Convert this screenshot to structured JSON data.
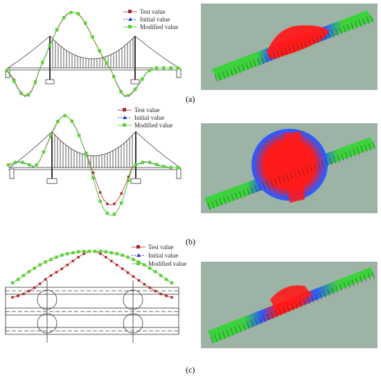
{
  "captions": {
    "a": "(a)",
    "b": "(b)",
    "c": "(c)"
  },
  "legend": {
    "test": "Test value",
    "initial": "Initial value",
    "modified": "Modified value"
  },
  "colors": {
    "test": "#c0504d",
    "test_marker": "#a52a2a",
    "initial": "#2233cc",
    "modified": "#5fd038",
    "mode_bg": "#9db3a6",
    "mode_low": "#3cd23c",
    "mode_mid": "#2a5cff",
    "mode_high": "#ff1a1a"
  },
  "chart_data": [
    {
      "type": "line",
      "panel": "a",
      "x": [
        0,
        1,
        2,
        3,
        4,
        5,
        6,
        7,
        8,
        9,
        10,
        11,
        12,
        13,
        14,
        15,
        16,
        17,
        18,
        19,
        20,
        21,
        22,
        23,
        24,
        25,
        26,
        27,
        28,
        29,
        30,
        31,
        32,
        33,
        34,
        35,
        36,
        37,
        38,
        39,
        40,
        41,
        42,
        43,
        44,
        45,
        46,
        47,
        48,
        49
      ],
      "series": [
        {
          "name": "Test value",
          "values": [
            -0.05,
            -0.12,
            -0.22,
            -0.35,
            -0.45,
            -0.5,
            -0.48,
            -0.4,
            -0.25,
            -0.05,
            0.1,
            0.25,
            0.4,
            0.55,
            0.68,
            0.8,
            0.9,
            0.97,
            1.0,
            1.0,
            0.97,
            0.9,
            0.8,
            0.68,
            0.55,
            0.42,
            0.3,
            0.18,
            0.08,
            -0.02,
            -0.15,
            -0.3,
            -0.42,
            -0.5,
            -0.5,
            -0.45,
            -0.38,
            -0.3,
            -0.2,
            -0.1,
            -0.05,
            0,
            0,
            0,
            0,
            0,
            0,
            0,
            0,
            0
          ]
        },
        {
          "name": "Initial value",
          "values": [
            -0.06,
            -0.14,
            -0.25,
            -0.37,
            -0.47,
            -0.52,
            -0.5,
            -0.42,
            -0.27,
            -0.07,
            0.09,
            0.24,
            0.39,
            0.55,
            0.69,
            0.81,
            0.91,
            0.98,
            1.0,
            1.0,
            0.98,
            0.91,
            0.81,
            0.69,
            0.56,
            0.43,
            0.31,
            0.19,
            0.09,
            -0.01,
            -0.16,
            -0.32,
            -0.44,
            -0.52,
            -0.52,
            -0.47,
            -0.4,
            -0.31,
            -0.21,
            -0.11,
            -0.05,
            0,
            0,
            0,
            0,
            0,
            0,
            0,
            0,
            0
          ]
        },
        {
          "name": "Modified value",
          "values": [
            -0.05,
            -0.13,
            -0.24,
            -0.36,
            -0.46,
            -0.51,
            -0.49,
            -0.41,
            -0.26,
            -0.06,
            0.1,
            0.25,
            0.4,
            0.55,
            0.69,
            0.81,
            0.91,
            0.98,
            1.0,
            1.0,
            0.98,
            0.91,
            0.81,
            0.69,
            0.56,
            0.43,
            0.31,
            0.19,
            0.09,
            -0.01,
            -0.16,
            -0.31,
            -0.43,
            -0.51,
            -0.51,
            -0.46,
            -0.39,
            -0.3,
            -0.2,
            -0.1,
            -0.05,
            0,
            0,
            0,
            0,
            0,
            0,
            0,
            0,
            0
          ]
        }
      ]
    },
    {
      "type": "line",
      "panel": "b",
      "x": [
        0,
        1,
        2,
        3,
        4,
        5,
        6,
        7,
        8,
        9,
        10,
        11,
        12,
        13,
        14,
        15,
        16,
        17,
        18,
        19,
        20,
        21,
        22,
        23,
        24,
        25,
        26,
        27,
        28,
        29,
        30,
        31,
        32,
        33,
        34,
        35,
        36,
        37,
        38,
        39,
        40,
        41,
        42,
        43,
        44,
        45,
        46,
        47,
        48,
        49
      ],
      "series": [
        {
          "name": "Test value",
          "values": [
            0.05,
            0.08,
            0.1,
            0.11,
            0.1,
            0.08,
            0.05,
            0.02,
            0.05,
            0.15,
            0.3,
            0.45,
            0.6,
            0.75,
            0.88,
            0.97,
            1.0,
            0.97,
            0.9,
            0.78,
            0.62,
            0.45,
            0.28,
            0.1,
            -0.1,
            -0.3,
            -0.48,
            -0.62,
            -0.7,
            -0.72,
            -0.7,
            -0.62,
            -0.5,
            -0.35,
            -0.18,
            0,
            0.05,
            0.08,
            0.1,
            0.11,
            0.1,
            0.08,
            0.06,
            0.04,
            0.02,
            0.01,
            0,
            0,
            0,
            0
          ]
        },
        {
          "name": "Initial value",
          "values": [
            0.04,
            0.07,
            0.09,
            0.1,
            0.09,
            0.07,
            0.04,
            0.01,
            0.04,
            0.14,
            0.3,
            0.46,
            0.62,
            0.77,
            0.89,
            0.97,
            1.0,
            0.97,
            0.89,
            0.77,
            0.62,
            0.45,
            0.26,
            0.05,
            -0.2,
            -0.45,
            -0.65,
            -0.8,
            -0.88,
            -0.92,
            -0.9,
            -0.82,
            -0.68,
            -0.48,
            -0.25,
            -0.02,
            0.04,
            0.07,
            0.09,
            0.1,
            0.09,
            0.07,
            0.05,
            0.03,
            0.02,
            0.01,
            0,
            0,
            0,
            0
          ]
        },
        {
          "name": "Modified value",
          "values": [
            0.05,
            0.08,
            0.1,
            0.11,
            0.1,
            0.08,
            0.05,
            0.02,
            0.05,
            0.15,
            0.3,
            0.46,
            0.62,
            0.77,
            0.89,
            0.97,
            1.0,
            0.97,
            0.89,
            0.77,
            0.62,
            0.45,
            0.26,
            0.05,
            -0.2,
            -0.45,
            -0.65,
            -0.8,
            -0.88,
            -0.92,
            -0.9,
            -0.82,
            -0.68,
            -0.48,
            -0.25,
            -0.02,
            0.05,
            0.08,
            0.1,
            0.11,
            0.1,
            0.08,
            0.06,
            0.04,
            0.02,
            0.01,
            0,
            0,
            0,
            0
          ]
        }
      ]
    },
    {
      "type": "line",
      "panel": "c",
      "x": [
        0,
        1,
        2,
        3,
        4,
        5,
        6,
        7,
        8,
        9,
        10,
        11,
        12,
        13,
        14,
        15,
        16,
        17,
        18,
        19,
        20,
        21,
        22,
        23,
        24,
        25,
        26,
        27,
        28,
        29
      ],
      "series": [
        {
          "name": "Test value",
          "values": [
            0.05,
            0.08,
            0.12,
            0.18,
            0.25,
            0.33,
            0.42,
            0.5,
            0.57,
            0.64,
            0.72,
            0.8,
            0.88,
            0.95,
            1.0,
            1.0,
            0.95,
            0.88,
            0.8,
            0.72,
            0.64,
            0.56,
            0.48,
            0.4,
            0.32,
            0.25,
            0.18,
            0.12,
            0.08,
            0.05
          ]
        },
        {
          "name": "Initial value",
          "values": [
            0.35,
            0.42,
            0.5,
            0.58,
            0.65,
            0.72,
            0.78,
            0.83,
            0.88,
            0.92,
            0.95,
            0.97,
            0.99,
            1.0,
            1.0,
            1.0,
            1.0,
            0.99,
            0.97,
            0.95,
            0.92,
            0.88,
            0.83,
            0.78,
            0.72,
            0.65,
            0.58,
            0.5,
            0.42,
            0.35
          ]
        },
        {
          "name": "Modified value",
          "values": [
            0.35,
            0.42,
            0.5,
            0.58,
            0.65,
            0.72,
            0.78,
            0.83,
            0.88,
            0.92,
            0.95,
            0.97,
            0.99,
            1.0,
            1.0,
            1.0,
            1.0,
            0.99,
            0.97,
            0.95,
            0.92,
            0.88,
            0.83,
            0.78,
            0.72,
            0.65,
            0.58,
            0.5,
            0.42,
            0.35
          ]
        }
      ]
    }
  ]
}
